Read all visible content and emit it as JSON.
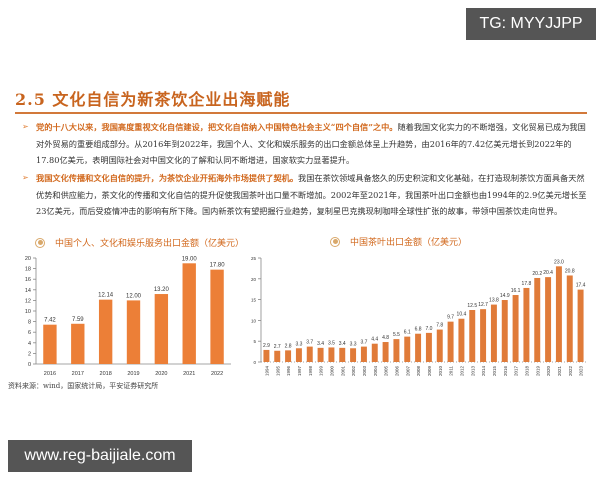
{
  "overlay": {
    "top_badge": "TG: MYYJJPP",
    "bottom_badge": "www.reg-baijiale.com"
  },
  "section": {
    "title": "2.5 文化自信为新茶饮企业出海赋能"
  },
  "bullets": [
    {
      "lead": "党的十八大以来，我国高度重视文化自信建设，把文化自信纳入中国特色社会主义“四个自信”之中。",
      "body": "随着我国文化实力的不断增强，文化贸易已成为我国对外贸易的重要组成部分。从2016年到2022年，我国个人、文化和娱乐服务的出口金额总体呈上升趋势，由2016年的7.42亿美元增长到2022年的17.80亿美元，表明国际社会对中国文化的了解和认同不断增进，国家软实力显著提升。"
    },
    {
      "lead": "我国文化传播和文化自信的提升，为茶饮企业开拓海外市场提供了契机。",
      "body": "我国在茶饮领域具备悠久的历史积淀和文化基础，在打造现制茶饮方面具备天然优势和供应能力，茶文化的传播和文化自信的提升促使我国茶叶出口量不断增加。2002年至2021年，我国茶叶出口金额也由1994年的2.9亿美元增长至23亿美元，而后受疫情冲击的影响有所下降。国内新茶饮有望把握行业趋势，复制星巴克携现制咖啡全球性扩张的故事，带领中国茶饮走向世界。"
    }
  ],
  "source": "资料来源：wind，国家统计局，平安证券研究所",
  "chart_data": [
    {
      "type": "bar",
      "title": "中国个人、文化和娱乐服务出口金额（亿美元）",
      "categories": [
        "2016",
        "2017",
        "2018",
        "2019",
        "2020",
        "2021",
        "2022"
      ],
      "values": [
        7.42,
        7.59,
        12.14,
        12.0,
        13.2,
        19.0,
        17.8
      ],
      "value_labels": [
        "7.42",
        "7.59",
        "12.14",
        "12.00",
        "13.20",
        "19.00",
        "17.80"
      ],
      "yticks": [
        "0",
        "2",
        "4",
        "6",
        "8",
        "10",
        "12",
        "14",
        "16",
        "18",
        "20"
      ],
      "xlabel": "",
      "ylabel": "",
      "ylim": [
        0,
        20
      ],
      "grid": false,
      "color": "#ec7f37"
    },
    {
      "type": "bar",
      "title": "中国茶叶出口金额（亿美元）",
      "categories": [
        "1994",
        "1995",
        "1996",
        "1997",
        "1998",
        "1999",
        "2000",
        "2001",
        "2002",
        "2003",
        "2004",
        "2005",
        "2006",
        "2007",
        "2008",
        "2009",
        "2010",
        "2011",
        "2012",
        "2013",
        "2014",
        "2015",
        "2016",
        "2017",
        "2018",
        "2019",
        "2020",
        "2021",
        "2022",
        "2023"
      ],
      "values": [
        2.9,
        2.7,
        2.8,
        3.3,
        3.7,
        3.4,
        3.5,
        3.4,
        3.3,
        3.7,
        4.4,
        4.8,
        5.5,
        6.1,
        6.8,
        7.0,
        7.8,
        9.7,
        10.4,
        12.5,
        12.7,
        13.8,
        14.9,
        16.1,
        17.8,
        20.2,
        20.4,
        23.0,
        20.8,
        17.4
      ],
      "value_labels": [
        "2.9",
        "2.7",
        "2.8",
        "3.3",
        "3.7",
        "3.4",
        "3.5",
        "3.4",
        "3.3",
        "3.7",
        "4.4",
        "4.8",
        "5.5",
        "6.1",
        "6.8",
        "7.0",
        "7.8",
        "9.7",
        "10.4",
        "12.5",
        "12.7",
        "13.8",
        "14.9",
        "16.1",
        "17.8",
        "20.2",
        "20.4",
        "23.0",
        "20.8",
        "17.4"
      ],
      "yticks": [
        "0",
        "5",
        "10",
        "15",
        "20",
        "25"
      ],
      "xlabel": "",
      "ylabel": "",
      "ylim": [
        0,
        25
      ],
      "grid": false,
      "color": "#e07b39"
    }
  ]
}
